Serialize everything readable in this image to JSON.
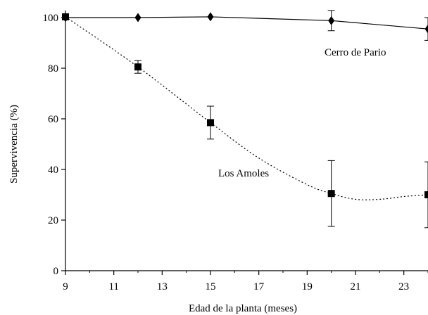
{
  "chart_data": {
    "type": "line",
    "xlabel": "Edad de la planta (meses)",
    "ylabel": "Supervivencia (%)",
    "xlim": [
      9,
      24
    ],
    "ylim": [
      0,
      100
    ],
    "xticks": [
      9,
      11,
      13,
      15,
      17,
      19,
      21,
      23
    ],
    "yticks": [
      0,
      20,
      40,
      60,
      80,
      100
    ],
    "grid": false,
    "series": [
      {
        "name": "Cerro de Pario",
        "marker": "diamond",
        "line_style": "solid",
        "x": [
          9,
          12,
          15,
          20,
          24
        ],
        "y": [
          100,
          100,
          100.3,
          98.8,
          95.5
        ],
        "error": [
          0,
          0,
          0,
          4,
          4.5
        ]
      },
      {
        "name": "Los Amoles",
        "marker": "square",
        "line_style": "dotted",
        "x": [
          9,
          12,
          15,
          20,
          24
        ],
        "y": [
          100.3,
          80.5,
          58.5,
          30.5,
          30
        ],
        "error": [
          0,
          2.5,
          6.5,
          13,
          13
        ]
      }
    ],
    "curve_through": {
      "Los Amoles": {
        "x": [
          9,
          12,
          15,
          17,
          19,
          20,
          21,
          22,
          23,
          24
        ],
        "y": [
          100.3,
          80.5,
          58.5,
          44.5,
          34,
          30.5,
          28.2,
          28.2,
          29.3,
          30
        ]
      }
    },
    "colors": {
      "line": "#000000",
      "marker": "#000000"
    }
  }
}
